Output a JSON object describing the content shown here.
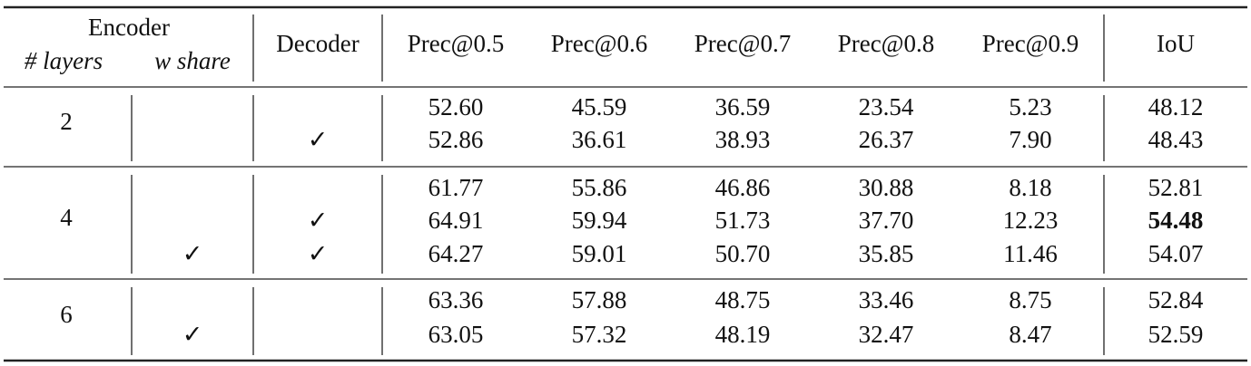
{
  "table": {
    "header": {
      "encoder": "Encoder",
      "layers": "# layers",
      "w_share": "w share",
      "decoder": "Decoder",
      "metrics": [
        "Prec@0.5",
        "Prec@0.6",
        "Prec@0.7",
        "Prec@0.8",
        "Prec@0.9",
        "IoU"
      ]
    },
    "groups": [
      {
        "layers": "2",
        "rows": [
          {
            "w_share": null,
            "decoder": null,
            "values": [
              "52.60",
              "45.59",
              "36.59",
              "23.54",
              "5.23",
              "48.12"
            ]
          },
          {
            "w_share": null,
            "decoder": "✓",
            "values": [
              "52.86",
              "36.61",
              "38.93",
              "26.37",
              "7.90",
              "48.43"
            ]
          }
        ]
      },
      {
        "layers": "4",
        "rows": [
          {
            "w_share": null,
            "decoder": null,
            "values": [
              "61.77",
              "55.86",
              "46.86",
              "30.88",
              "8.18",
              "52.81"
            ]
          },
          {
            "w_share": null,
            "decoder": "✓",
            "values": [
              "64.91",
              "59.94",
              "51.73",
              "37.70",
              "12.23",
              "54.48"
            ]
          },
          {
            "w_share": "✓",
            "decoder": "✓",
            "values": [
              "64.27",
              "59.01",
              "50.70",
              "35.85",
              "11.46",
              "54.07"
            ]
          }
        ]
      },
      {
        "layers": "6",
        "rows": [
          {
            "w_share": null,
            "decoder": null,
            "values": [
              "63.36",
              "57.88",
              "48.75",
              "33.46",
              "8.75",
              "52.84"
            ]
          },
          {
            "w_share": "✓",
            "decoder": null,
            "values": [
              "63.05",
              "57.32",
              "48.19",
              "32.47",
              "8.47",
              "52.59"
            ]
          }
        ]
      }
    ]
  }
}
